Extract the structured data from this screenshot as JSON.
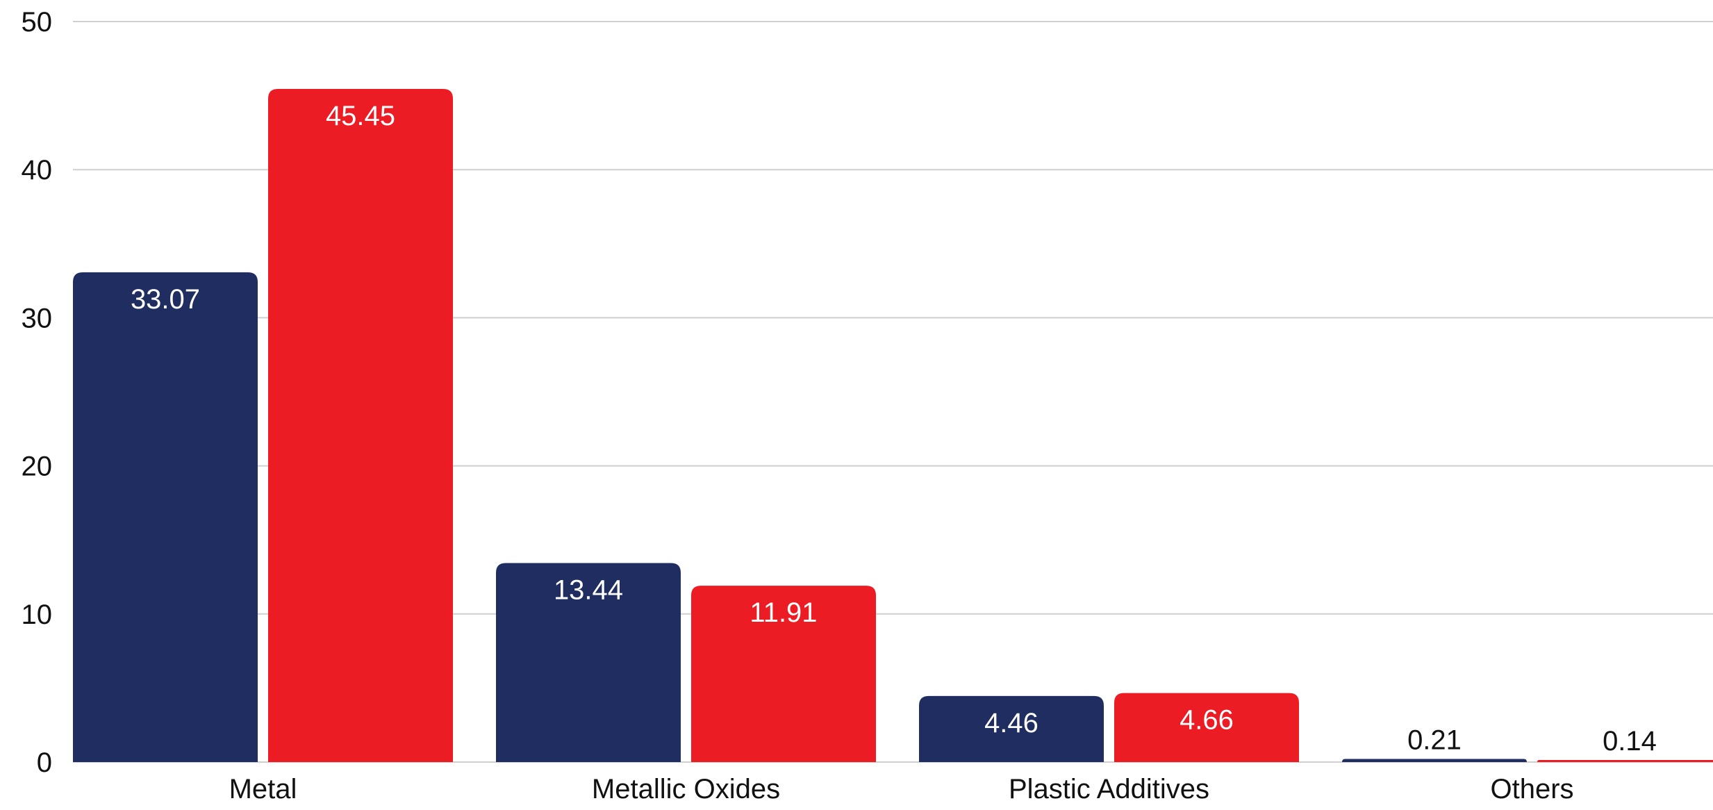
{
  "chart_data": {
    "type": "bar",
    "categories": [
      "Metal",
      "Metallic Oxides",
      "Plastic Additives",
      "Others"
    ],
    "series": [
      {
        "values": [
          33.07,
          13.44,
          4.46,
          0.21
        ],
        "value_labels": [
          "33.07",
          "13.44",
          "4.46",
          "0.21"
        ],
        "color": "#1f2d61"
      },
      {
        "values": [
          45.45,
          11.91,
          4.66,
          0.14
        ],
        "value_labels": [
          "45.45",
          "11.91",
          "4.66",
          "0.14"
        ],
        "color": "#ec1c24"
      }
    ],
    "ylim": [
      0,
      50
    ],
    "yticks": [
      0,
      10,
      20,
      30,
      40,
      50
    ],
    "ytick_labels": [
      "0",
      "10",
      "20",
      "30",
      "40",
      "50"
    ],
    "grid": true,
    "legend": "none",
    "data_labels": true
  }
}
